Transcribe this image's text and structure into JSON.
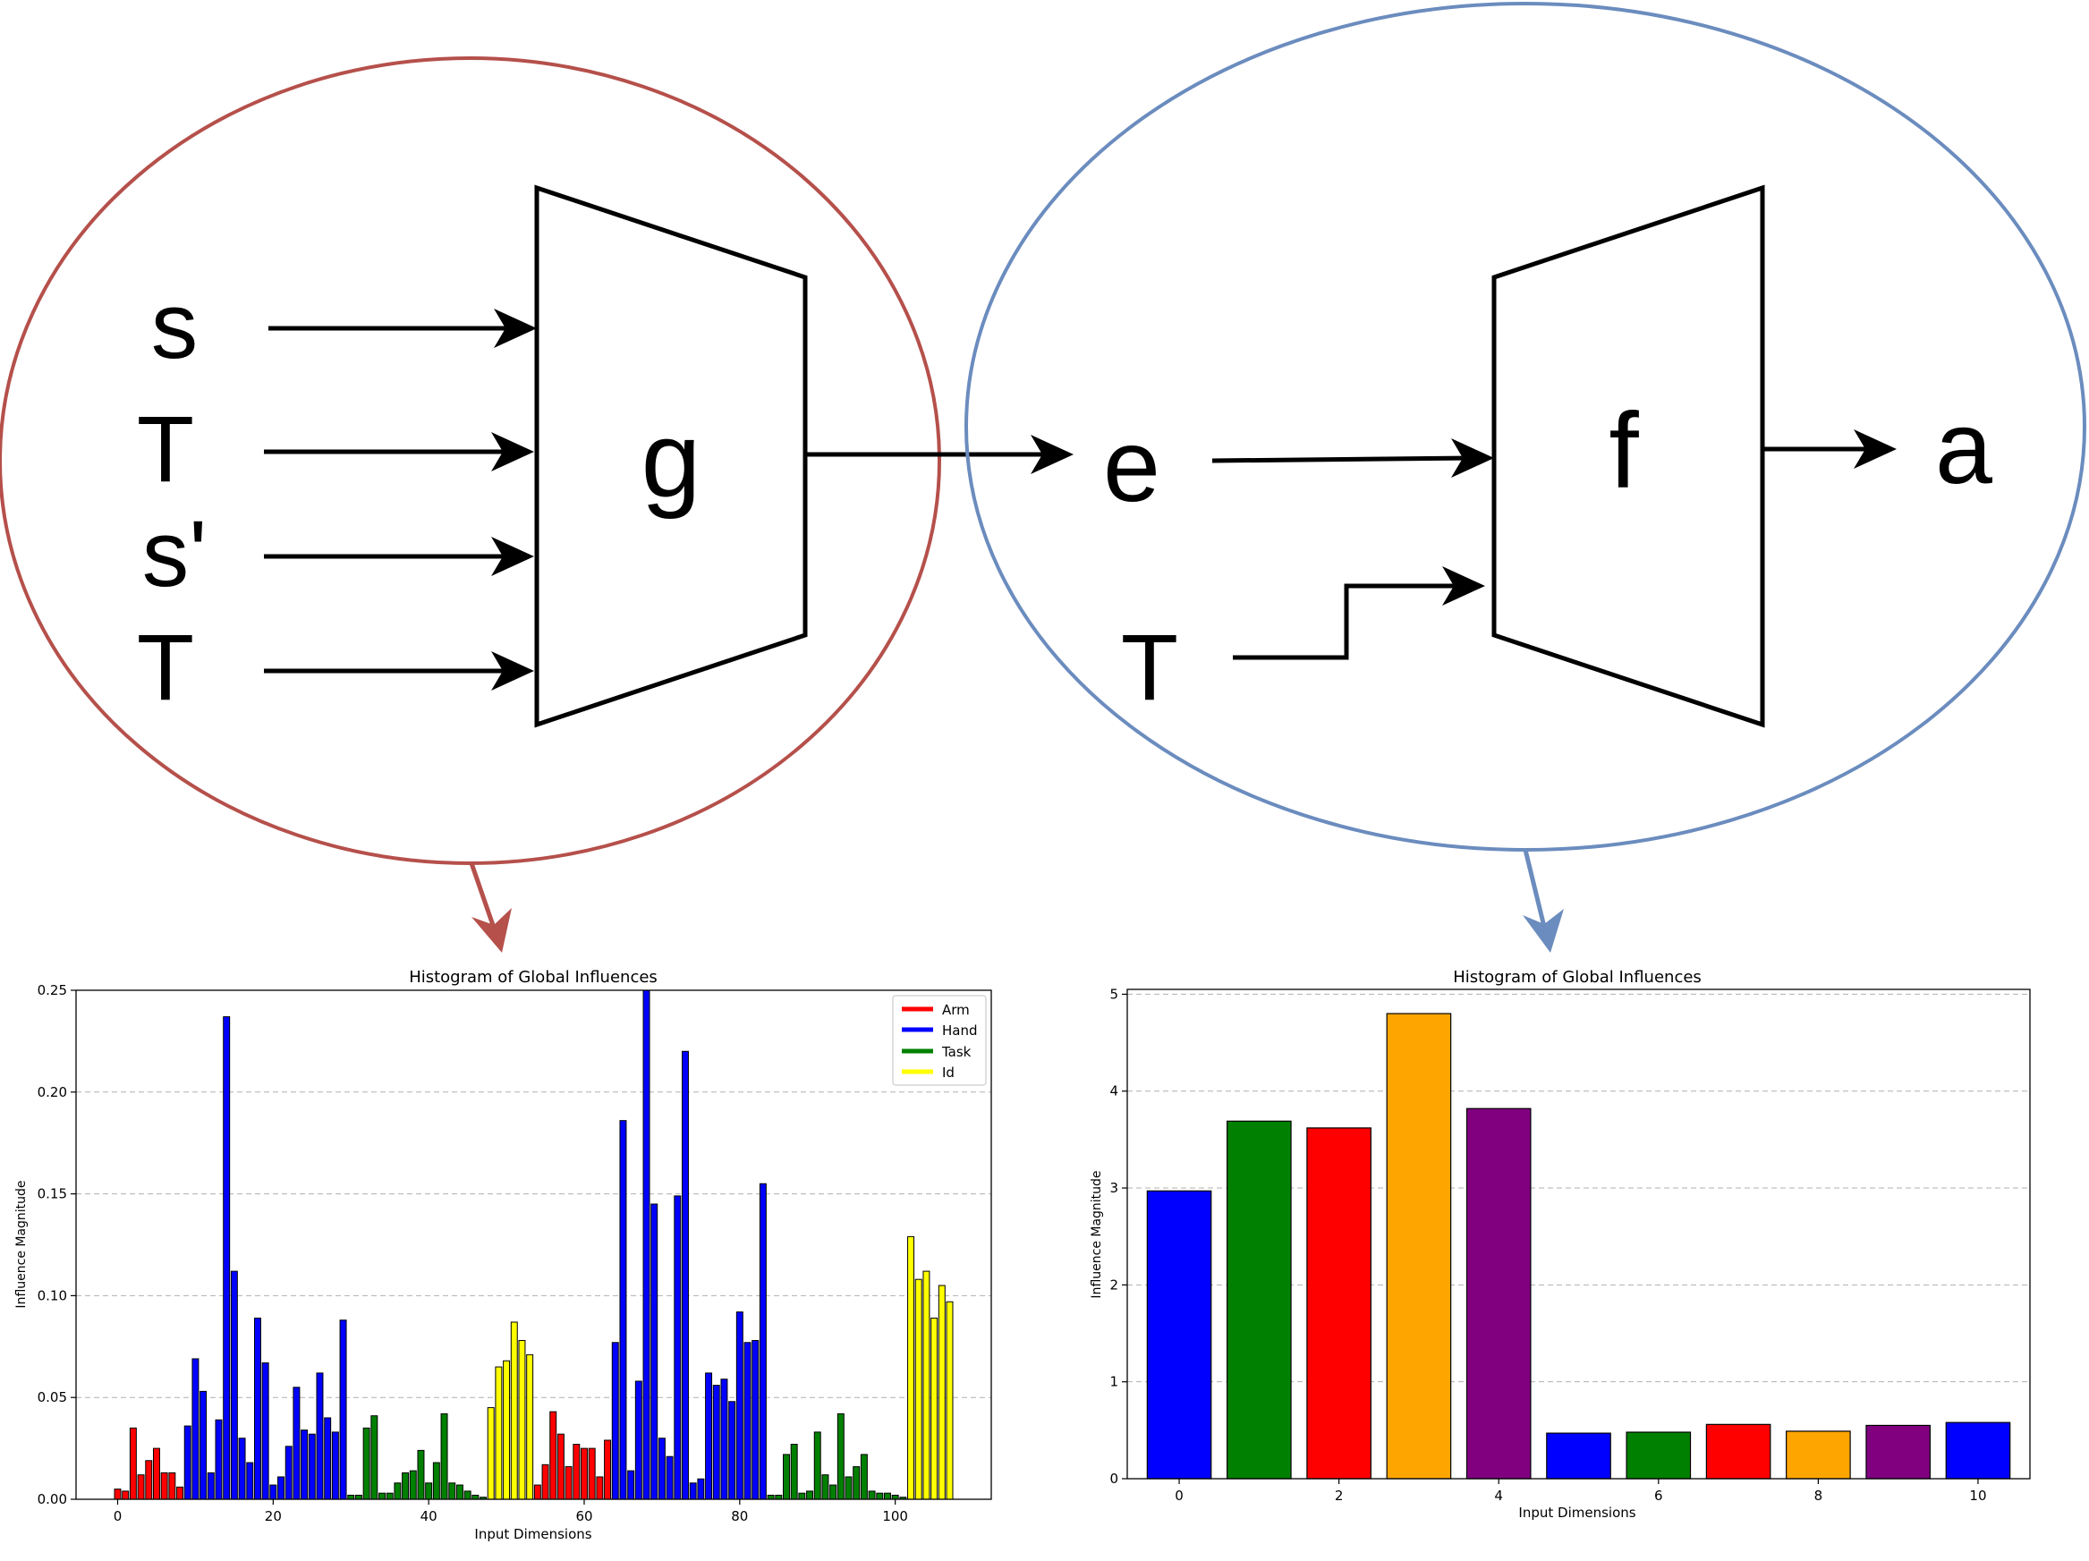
{
  "diagram": {
    "left_group": {
      "inputs": [
        "s",
        "T",
        "s'",
        "T"
      ],
      "block_label": "g",
      "circle_color": "#b5504b"
    },
    "right_group": {
      "input_e": "e",
      "input_t": "T",
      "block_label": "f",
      "output": "a",
      "circle_color": "#6b8cbe"
    }
  },
  "chart_data": [
    {
      "type": "bar",
      "title": "Histogram of Global Influences",
      "xlabel": "Input Dimensions",
      "ylabel": "Influence Magnitude",
      "xlim": [
        -5.35,
        112.35
      ],
      "ylim": [
        0,
        0.25
      ],
      "grid": "y dashed",
      "xticks": [
        0,
        20,
        40,
        60,
        80,
        100
      ],
      "yticks": [
        0.0,
        0.05,
        0.1,
        0.15,
        0.2,
        0.25
      ],
      "legend_position": "top-right",
      "legend": [
        {
          "name": "Arm",
          "color": "#ff0000"
        },
        {
          "name": "Hand",
          "color": "#0000ff"
        },
        {
          "name": "Task",
          "color": "#008000"
        },
        {
          "name": "Id",
          "color": "#ffff00"
        }
      ],
      "x": [
        0,
        1,
        2,
        3,
        4,
        5,
        6,
        7,
        8,
        9,
        10,
        11,
        12,
        13,
        14,
        15,
        16,
        17,
        18,
        19,
        20,
        21,
        22,
        23,
        24,
        25,
        26,
        27,
        28,
        29,
        30,
        31,
        32,
        33,
        34,
        35,
        36,
        37,
        38,
        39,
        40,
        41,
        42,
        43,
        44,
        45,
        46,
        47,
        48,
        49,
        50,
        51,
        52,
        53,
        54,
        55,
        56,
        57,
        58,
        59,
        60,
        61,
        62,
        63,
        64,
        65,
        66,
        67,
        68,
        69,
        70,
        71,
        72,
        73,
        74,
        75,
        76,
        77,
        78,
        79,
        80,
        81,
        82,
        83,
        84,
        85,
        86,
        87,
        88,
        89,
        90,
        91,
        92,
        93,
        94,
        95,
        96,
        97,
        98,
        99,
        100,
        101,
        102,
        103,
        104,
        105,
        106,
        107
      ],
      "values": [
        0.005,
        0.004,
        0.035,
        0.012,
        0.019,
        0.025,
        0.013,
        0.013,
        0.006,
        0.036,
        0.069,
        0.053,
        0.013,
        0.039,
        0.237,
        0.112,
        0.03,
        0.018,
        0.089,
        0.067,
        0.007,
        0.011,
        0.026,
        0.055,
        0.034,
        0.032,
        0.062,
        0.04,
        0.033,
        0.088,
        0.002,
        0.002,
        0.035,
        0.041,
        0.003,
        0.003,
        0.008,
        0.013,
        0.014,
        0.024,
        0.008,
        0.018,
        0.042,
        0.008,
        0.007,
        0.004,
        0.002,
        0.001,
        0.045,
        0.065,
        0.068,
        0.087,
        0.078,
        0.071,
        0.007,
        0.017,
        0.043,
        0.032,
        0.016,
        0.027,
        0.025,
        0.025,
        0.011,
        0.029,
        0.077,
        0.186,
        0.014,
        0.058,
        0.25,
        0.145,
        0.03,
        0.021,
        0.149,
        0.22,
        0.008,
        0.01,
        0.062,
        0.056,
        0.059,
        0.048,
        0.092,
        0.077,
        0.078,
        0.155,
        0.002,
        0.002,
        0.022,
        0.027,
        0.003,
        0.004,
        0.033,
        0.012,
        0.007,
        0.042,
        0.011,
        0.016,
        0.022,
        0.004,
        0.003,
        0.003,
        0.002,
        0.001,
        0.129,
        0.108,
        0.112,
        0.089,
        0.105,
        0.097
      ],
      "groups": [
        {
          "name": "Arm",
          "from": 0,
          "to": 8
        },
        {
          "name": "Hand",
          "from": 9,
          "to": 29
        },
        {
          "name": "Task",
          "from": 30,
          "to": 47
        },
        {
          "name": "Id",
          "from": 48,
          "to": 53
        },
        {
          "name": "Arm",
          "from": 54,
          "to": 63
        },
        {
          "name": "Hand",
          "from": 64,
          "to": 83
        },
        {
          "name": "Task",
          "from": 84,
          "to": 101
        },
        {
          "name": "Id",
          "from": 102,
          "to": 107
        }
      ]
    },
    {
      "type": "bar",
      "title": "Histogram of Global Influences",
      "xlabel": "Input Dimensions",
      "ylabel": "Influence Magnitude",
      "xlim": [
        -0.65,
        10.65
      ],
      "ylim": [
        0,
        5.05
      ],
      "grid": "y dashed",
      "xticks": [
        0,
        2,
        4,
        6,
        8,
        10
      ],
      "yticks": [
        0,
        1,
        2,
        3,
        4,
        5
      ],
      "x": [
        0,
        1,
        2,
        3,
        4,
        5,
        6,
        7,
        8,
        9,
        10
      ],
      "values": [
        2.97,
        3.69,
        3.62,
        4.8,
        3.82,
        0.47,
        0.48,
        0.56,
        0.49,
        0.55,
        0.58
      ],
      "colors": [
        "#0000ff",
        "#008000",
        "#ff0000",
        "#ffa500",
        "#800080",
        "#0000ff",
        "#008000",
        "#ff0000",
        "#ffa500",
        "#800080",
        "#0000ff"
      ]
    }
  ]
}
